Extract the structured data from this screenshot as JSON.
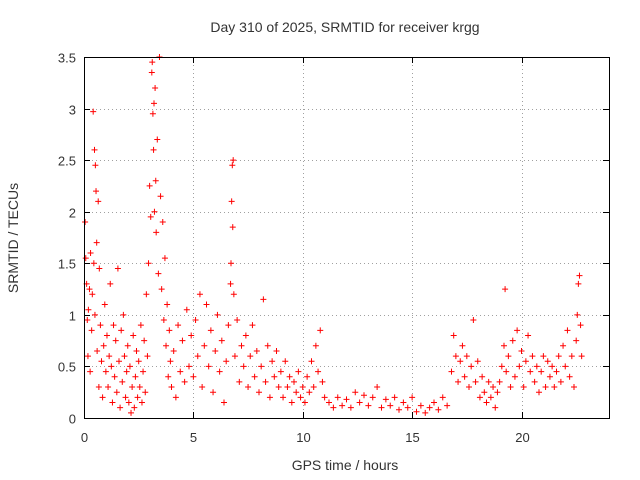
{
  "chart_data": {
    "type": "scatter",
    "title": "Day 310 of 2025, SRMTID for receiver krgg",
    "xlabel": "GPS time / hours",
    "ylabel": "SRMTID / TECUs",
    "xlim": [
      0,
      24
    ],
    "ylim": [
      0,
      3.5
    ],
    "xticks": [
      0,
      5,
      10,
      15,
      20
    ],
    "yticks": [
      0,
      0.5,
      1,
      1.5,
      2,
      2.5,
      3,
      3.5
    ],
    "xtick_labels": [
      "0",
      "5",
      "10",
      "15",
      "20"
    ],
    "ytick_labels": [
      "0",
      "0.5",
      "1",
      "1.5",
      "2",
      "2.5",
      "3",
      "3.5"
    ],
    "grid": true,
    "legend": "none",
    "marker": "plus",
    "color": "#ff0000",
    "series": [
      {
        "name": "SRMTID",
        "points": [
          [
            0.05,
            1.9
          ],
          [
            0.08,
            1.55
          ],
          [
            0.12,
            1.3
          ],
          [
            0.15,
            0.95
          ],
          [
            0.18,
            0.6
          ],
          [
            0.2,
            1.05
          ],
          [
            0.25,
            1.25
          ],
          [
            0.28,
            0.45
          ],
          [
            0.3,
            1.6
          ],
          [
            0.35,
            0.85
          ],
          [
            0.38,
            1.2
          ],
          [
            0.42,
            2.97
          ],
          [
            0.45,
            1.5
          ],
          [
            0.48,
            2.6
          ],
          [
            0.5,
            1.0
          ],
          [
            0.52,
            2.45
          ],
          [
            0.55,
            2.2
          ],
          [
            0.58,
            1.7
          ],
          [
            0.6,
            0.65
          ],
          [
            0.65,
            2.1
          ],
          [
            0.68,
            0.3
          ],
          [
            0.7,
            1.45
          ],
          [
            0.75,
            0.9
          ],
          [
            0.8,
            0.55
          ],
          [
            0.85,
            0.2
          ],
          [
            0.9,
            0.7
          ],
          [
            0.95,
            1.1
          ],
          [
            1.0,
            0.45
          ],
          [
            1.05,
            0.8
          ],
          [
            1.1,
            0.3
          ],
          [
            1.15,
            0.6
          ],
          [
            1.2,
            1.3
          ],
          [
            1.25,
            0.5
          ],
          [
            1.3,
            0.15
          ],
          [
            1.35,
            0.9
          ],
          [
            1.4,
            0.4
          ],
          [
            1.45,
            0.75
          ],
          [
            1.5,
            0.25
          ],
          [
            1.55,
            1.45
          ],
          [
            1.6,
            0.55
          ],
          [
            1.65,
            0.1
          ],
          [
            1.7,
            0.85
          ],
          [
            1.75,
            0.35
          ],
          [
            1.8,
            1.0
          ],
          [
            1.85,
            0.6
          ],
          [
            1.9,
            0.2
          ],
          [
            1.95,
            0.45
          ],
          [
            2.0,
            0.7
          ],
          [
            2.05,
            0.15
          ],
          [
            2.1,
            0.5
          ],
          [
            2.15,
            0.05
          ],
          [
            2.2,
            0.3
          ],
          [
            2.25,
            0.8
          ],
          [
            2.3,
            0.1
          ],
          [
            2.35,
            0.4
          ],
          [
            2.4,
            0.65
          ],
          [
            2.45,
            0.2
          ],
          [
            2.5,
            0.55
          ],
          [
            2.55,
            0.3
          ],
          [
            2.6,
            0.9
          ],
          [
            2.65,
            0.15
          ],
          [
            2.7,
            0.45
          ],
          [
            2.75,
            0.75
          ],
          [
            2.8,
            0.25
          ],
          [
            2.85,
            1.2
          ],
          [
            2.9,
            0.6
          ],
          [
            2.95,
            1.5
          ],
          [
            3.0,
            2.25
          ],
          [
            3.05,
            1.95
          ],
          [
            3.1,
            3.35
          ],
          [
            3.12,
            3.45
          ],
          [
            3.15,
            2.95
          ],
          [
            3.18,
            2.6
          ],
          [
            3.2,
            3.05
          ],
          [
            3.22,
            2.0
          ],
          [
            3.25,
            3.2
          ],
          [
            3.28,
            2.3
          ],
          [
            3.3,
            1.8
          ],
          [
            3.35,
            2.7
          ],
          [
            3.4,
            1.4
          ],
          [
            3.45,
            3.5
          ],
          [
            3.5,
            2.15
          ],
          [
            3.55,
            1.25
          ],
          [
            3.6,
            1.9
          ],
          [
            3.65,
            0.95
          ],
          [
            3.7,
            1.55
          ],
          [
            3.75,
            0.7
          ],
          [
            3.8,
            1.1
          ],
          [
            3.85,
            0.4
          ],
          [
            3.9,
            0.85
          ],
          [
            3.95,
            0.55
          ],
          [
            4.0,
            0.3
          ],
          [
            4.1,
            0.65
          ],
          [
            4.2,
            0.2
          ],
          [
            4.3,
            0.9
          ],
          [
            4.4,
            0.45
          ],
          [
            4.5,
            0.75
          ],
          [
            4.6,
            0.35
          ],
          [
            4.7,
            1.05
          ],
          [
            4.8,
            0.5
          ],
          [
            4.9,
            0.8
          ],
          [
            5.0,
            0.4
          ],
          [
            5.1,
            0.95
          ],
          [
            5.2,
            0.6
          ],
          [
            5.3,
            1.2
          ],
          [
            5.4,
            0.3
          ],
          [
            5.5,
            0.7
          ],
          [
            5.6,
            1.1
          ],
          [
            5.7,
            0.5
          ],
          [
            5.8,
            0.85
          ],
          [
            5.9,
            0.25
          ],
          [
            6.0,
            0.65
          ],
          [
            6.1,
            1.0
          ],
          [
            6.2,
            0.45
          ],
          [
            6.3,
            0.75
          ],
          [
            6.4,
            0.15
          ],
          [
            6.5,
            0.55
          ],
          [
            6.6,
            0.9
          ],
          [
            6.7,
            1.3
          ],
          [
            6.72,
            1.5
          ],
          [
            6.75,
            2.1
          ],
          [
            6.78,
            2.45
          ],
          [
            6.8,
            1.85
          ],
          [
            6.82,
            2.5
          ],
          [
            6.85,
            1.2
          ],
          [
            6.9,
            0.6
          ],
          [
            7.0,
            0.95
          ],
          [
            7.1,
            0.35
          ],
          [
            7.2,
            0.7
          ],
          [
            7.3,
            0.5
          ],
          [
            7.4,
            0.8
          ],
          [
            7.5,
            0.3
          ],
          [
            7.6,
            0.6
          ],
          [
            7.7,
            0.9
          ],
          [
            7.8,
            0.4
          ],
          [
            7.9,
            0.65
          ],
          [
            8.0,
            0.25
          ],
          [
            8.1,
            0.5
          ],
          [
            8.2,
            1.15
          ],
          [
            8.3,
            0.35
          ],
          [
            8.4,
            0.7
          ],
          [
            8.5,
            0.2
          ],
          [
            8.6,
            0.55
          ],
          [
            8.7,
            0.4
          ],
          [
            8.8,
            0.65
          ],
          [
            8.9,
            0.3
          ],
          [
            9.0,
            0.45
          ],
          [
            9.1,
            0.2
          ],
          [
            9.2,
            0.55
          ],
          [
            9.3,
            0.3
          ],
          [
            9.4,
            0.4
          ],
          [
            9.5,
            0.15
          ],
          [
            9.6,
            0.35
          ],
          [
            9.7,
            0.25
          ],
          [
            9.8,
            0.45
          ],
          [
            9.9,
            0.2
          ],
          [
            10.0,
            0.3
          ],
          [
            10.1,
            0.15
          ],
          [
            10.2,
            0.4
          ],
          [
            10.3,
            0.25
          ],
          [
            10.4,
            0.55
          ],
          [
            10.5,
            0.3
          ],
          [
            10.6,
            0.7
          ],
          [
            10.7,
            0.45
          ],
          [
            10.8,
            0.85
          ],
          [
            10.9,
            0.35
          ],
          [
            11.0,
            0.2
          ],
          [
            11.2,
            0.15
          ],
          [
            11.4,
            0.1
          ],
          [
            11.6,
            0.2
          ],
          [
            11.8,
            0.12
          ],
          [
            12.0,
            0.18
          ],
          [
            12.2,
            0.1
          ],
          [
            12.4,
            0.25
          ],
          [
            12.6,
            0.15
          ],
          [
            12.8,
            0.22
          ],
          [
            13.0,
            0.12
          ],
          [
            13.2,
            0.2
          ],
          [
            13.4,
            0.3
          ],
          [
            13.6,
            0.1
          ],
          [
            13.8,
            0.18
          ],
          [
            14.0,
            0.12
          ],
          [
            14.2,
            0.2
          ],
          [
            14.4,
            0.08
          ],
          [
            14.6,
            0.15
          ],
          [
            14.8,
            0.1
          ],
          [
            15.0,
            0.2
          ],
          [
            15.2,
            0.06
          ],
          [
            15.4,
            0.12
          ],
          [
            15.6,
            0.05
          ],
          [
            15.8,
            0.1
          ],
          [
            16.0,
            0.15
          ],
          [
            16.2,
            0.08
          ],
          [
            16.4,
            0.2
          ],
          [
            16.6,
            0.12
          ],
          [
            16.8,
            0.45
          ],
          [
            16.9,
            0.8
          ],
          [
            17.0,
            0.6
          ],
          [
            17.1,
            0.35
          ],
          [
            17.2,
            0.55
          ],
          [
            17.3,
            0.7
          ],
          [
            17.4,
            0.4
          ],
          [
            17.5,
            0.6
          ],
          [
            17.6,
            0.3
          ],
          [
            17.7,
            0.5
          ],
          [
            17.8,
            0.95
          ],
          [
            17.9,
            0.35
          ],
          [
            18.0,
            0.55
          ],
          [
            18.1,
            0.2
          ],
          [
            18.2,
            0.4
          ],
          [
            18.3,
            0.25
          ],
          [
            18.4,
            0.15
          ],
          [
            18.5,
            0.35
          ],
          [
            18.6,
            0.2
          ],
          [
            18.7,
            0.3
          ],
          [
            18.8,
            0.1
          ],
          [
            18.9,
            0.25
          ],
          [
            19.0,
            0.35
          ],
          [
            19.1,
            0.5
          ],
          [
            19.2,
            0.7
          ],
          [
            19.25,
            1.25
          ],
          [
            19.3,
            0.45
          ],
          [
            19.4,
            0.6
          ],
          [
            19.5,
            0.3
          ],
          [
            19.6,
            0.75
          ],
          [
            19.7,
            0.4
          ],
          [
            19.8,
            0.85
          ],
          [
            19.9,
            0.5
          ],
          [
            20.0,
            0.65
          ],
          [
            20.1,
            0.3
          ],
          [
            20.2,
            0.55
          ],
          [
            20.3,
            0.8
          ],
          [
            20.4,
            0.45
          ],
          [
            20.5,
            0.6
          ],
          [
            20.6,
            0.35
          ],
          [
            20.7,
            0.5
          ],
          [
            20.8,
            0.25
          ],
          [
            20.9,
            0.45
          ],
          [
            21.0,
            0.6
          ],
          [
            21.1,
            0.3
          ],
          [
            21.2,
            0.55
          ],
          [
            21.3,
            0.4
          ],
          [
            21.4,
            0.5
          ],
          [
            21.5,
            0.3
          ],
          [
            21.6,
            0.45
          ],
          [
            21.7,
            0.6
          ],
          [
            21.8,
            0.35
          ],
          [
            21.9,
            0.7
          ],
          [
            22.0,
            0.5
          ],
          [
            22.1,
            0.85
          ],
          [
            22.2,
            0.4
          ],
          [
            22.3,
            0.6
          ],
          [
            22.4,
            0.3
          ],
          [
            22.5,
            0.75
          ],
          [
            22.55,
            1.0
          ],
          [
            22.6,
            1.3
          ],
          [
            22.65,
            1.38
          ],
          [
            22.7,
            0.9
          ],
          [
            22.75,
            0.6
          ]
        ]
      }
    ]
  }
}
